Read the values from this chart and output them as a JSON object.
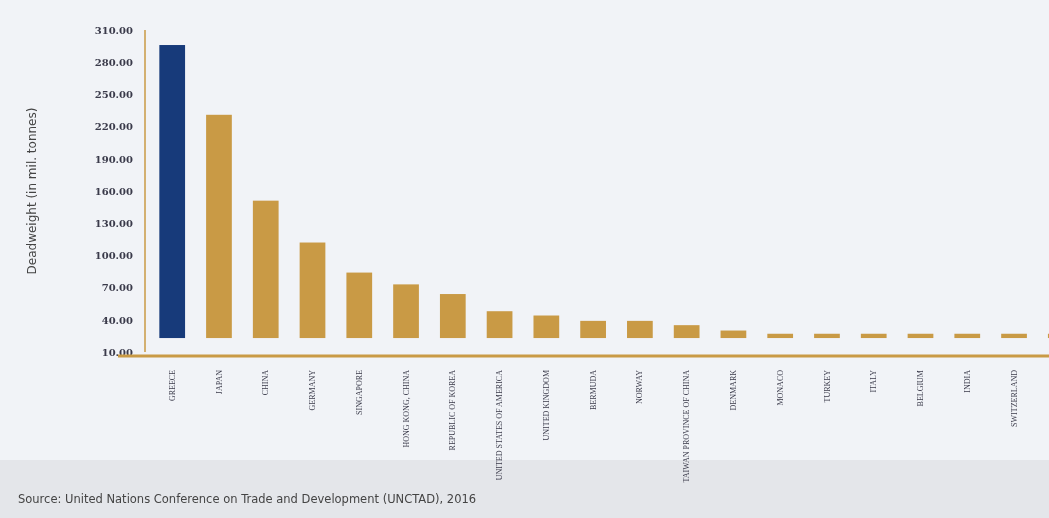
{
  "chart_data": {
    "type": "bar",
    "ylabel": "Deadweight (in mil. tonnes)",
    "categories": [
      "GREECE",
      "JAPAN",
      "CHINA",
      "GERMANY",
      "SINGAPORE",
      "HONG KONG, CHINA",
      "REPUBLIC OF KOREA",
      "UNITED STATES OF AMERICA",
      "UNITED KINGDOM",
      "BERMUDA",
      "NORWAY",
      "TAIWAN PROVINCE OF CHINA",
      "DENMARK",
      "MONACO",
      "TURKEY",
      "ITALY",
      "BELGIUM",
      "INDIA",
      "SWITZERLAND",
      null
    ],
    "values": [
      273,
      208,
      128,
      89,
      61,
      50,
      41,
      25,
      21,
      16,
      16,
      12,
      7,
      4,
      4,
      4,
      4,
      4,
      4,
      4
    ],
    "base": [
      23,
      23,
      23,
      23,
      23,
      23,
      23,
      23,
      23,
      23,
      23,
      23,
      23,
      23,
      23,
      23,
      23,
      23,
      23,
      23
    ],
    "colors": [
      "#173a7a",
      "#c99a45",
      "#c99a45",
      "#c99a45",
      "#c99a45",
      "#c99a45",
      "#c99a45",
      "#c99a45",
      "#c99a45",
      "#c99a45",
      "#c99a45",
      "#c99a45",
      "#c99a45",
      "#c99a45",
      "#c99a45",
      "#c99a45",
      "#c99a45",
      "#c99a45",
      "#c99a45",
      "#c99a45"
    ],
    "ylim": [
      10,
      310
    ],
    "yticks": [
      {
        "value": 10,
        "label": "10.00"
      },
      {
        "value": 40,
        "label": "40.00"
      },
      {
        "value": 70,
        "label": "70.00"
      },
      {
        "value": 100,
        "label": "100.00"
      },
      {
        "value": 130,
        "label": "130.00"
      },
      {
        "value": 160,
        "label": "160.00"
      },
      {
        "value": 190,
        "label": "190.00"
      },
      {
        "value": 220,
        "label": "220.00"
      },
      {
        "value": 250,
        "label": "250.00"
      },
      {
        "value": 280,
        "label": "280.00"
      },
      {
        "value": 310,
        "label": "310.00"
      }
    ],
    "grid": false,
    "annotations": [
      "Source: United Nations Conference on Trade and Development (UNCTAD), 2016"
    ]
  }
}
